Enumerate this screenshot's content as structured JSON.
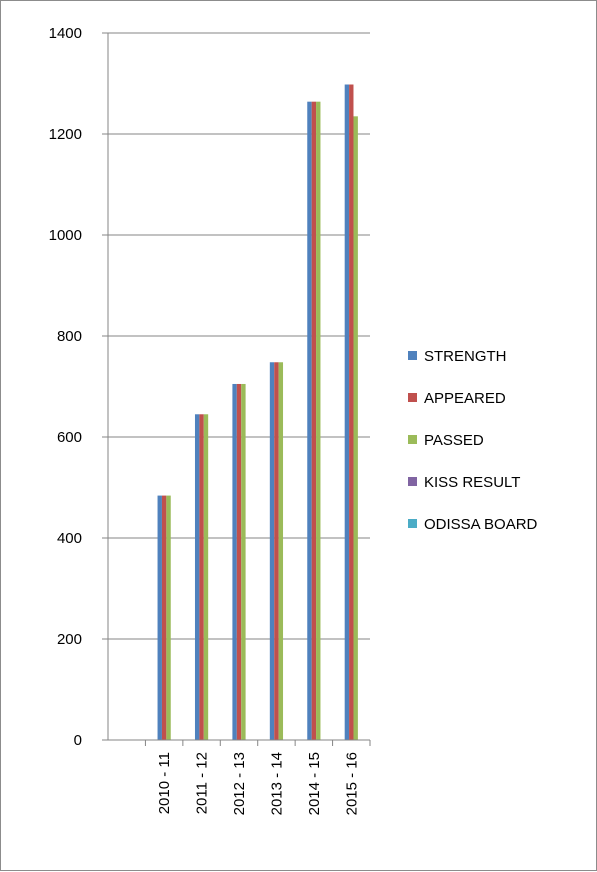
{
  "chart_data": {
    "type": "bar",
    "title": "",
    "xlabel": "",
    "ylabel": "",
    "ylim": [
      0,
      1400
    ],
    "yticks": [
      0,
      200,
      400,
      600,
      800,
      1000,
      1200,
      1400
    ],
    "grid": true,
    "legend_position": "right",
    "categories": [
      "2010 - 11",
      "2011 - 12",
      "2012 - 13",
      "2013 - 14",
      "2014 - 15",
      "2015 - 16"
    ],
    "series": [
      {
        "name": "STRENGTH",
        "color": "#4f81bd",
        "values": [
          484,
          645,
          705,
          748,
          1264,
          1298
        ]
      },
      {
        "name": "APPEARED",
        "color": "#c0504d",
        "values": [
          484,
          645,
          705,
          748,
          1264,
          1298
        ]
      },
      {
        "name": "PASSED",
        "color": "#9bbb59",
        "values": [
          484,
          645,
          705,
          748,
          1264,
          1235
        ]
      },
      {
        "name": "KISS RESULT",
        "color": "#8064a2",
        "values": [
          null,
          null,
          null,
          null,
          null,
          null
        ]
      },
      {
        "name": "ODISSA BOARD",
        "color": "#4bacc6",
        "values": [
          null,
          null,
          null,
          null,
          null,
          null
        ]
      }
    ]
  }
}
